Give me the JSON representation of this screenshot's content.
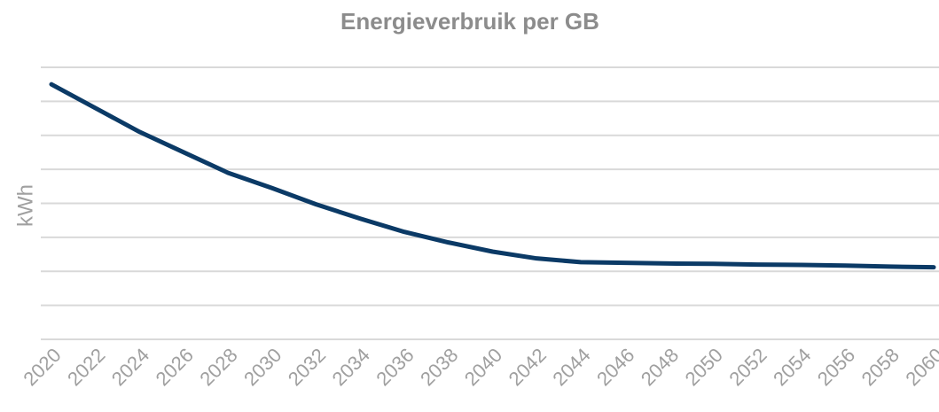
{
  "chart_data": {
    "type": "line",
    "title": "Energieverbruik per GB",
    "y_label": "kWh",
    "categories": [
      "2020",
      "2022",
      "2024",
      "2026",
      "2028",
      "2030",
      "2032",
      "2034",
      "2036",
      "2038",
      "2040",
      "2042",
      "2044",
      "2046",
      "2048",
      "2050",
      "2052",
      "2054",
      "2056",
      "2058",
      "2060"
    ],
    "series": [
      {
        "name": "Energieverbruik per GB",
        "color": "#0b3a66",
        "values": [
          7.5,
          6.8,
          6.1,
          5.5,
          4.9,
          4.45,
          3.97,
          3.55,
          3.16,
          2.85,
          2.58,
          2.38,
          2.27,
          2.25,
          2.23,
          2.22,
          2.2,
          2.19,
          2.17,
          2.14,
          2.12
        ]
      }
    ],
    "ylim": [
      0,
      8
    ],
    "yticks": [
      0,
      1,
      2,
      3,
      4,
      5,
      6,
      7,
      8
    ],
    "grid": true
  }
}
